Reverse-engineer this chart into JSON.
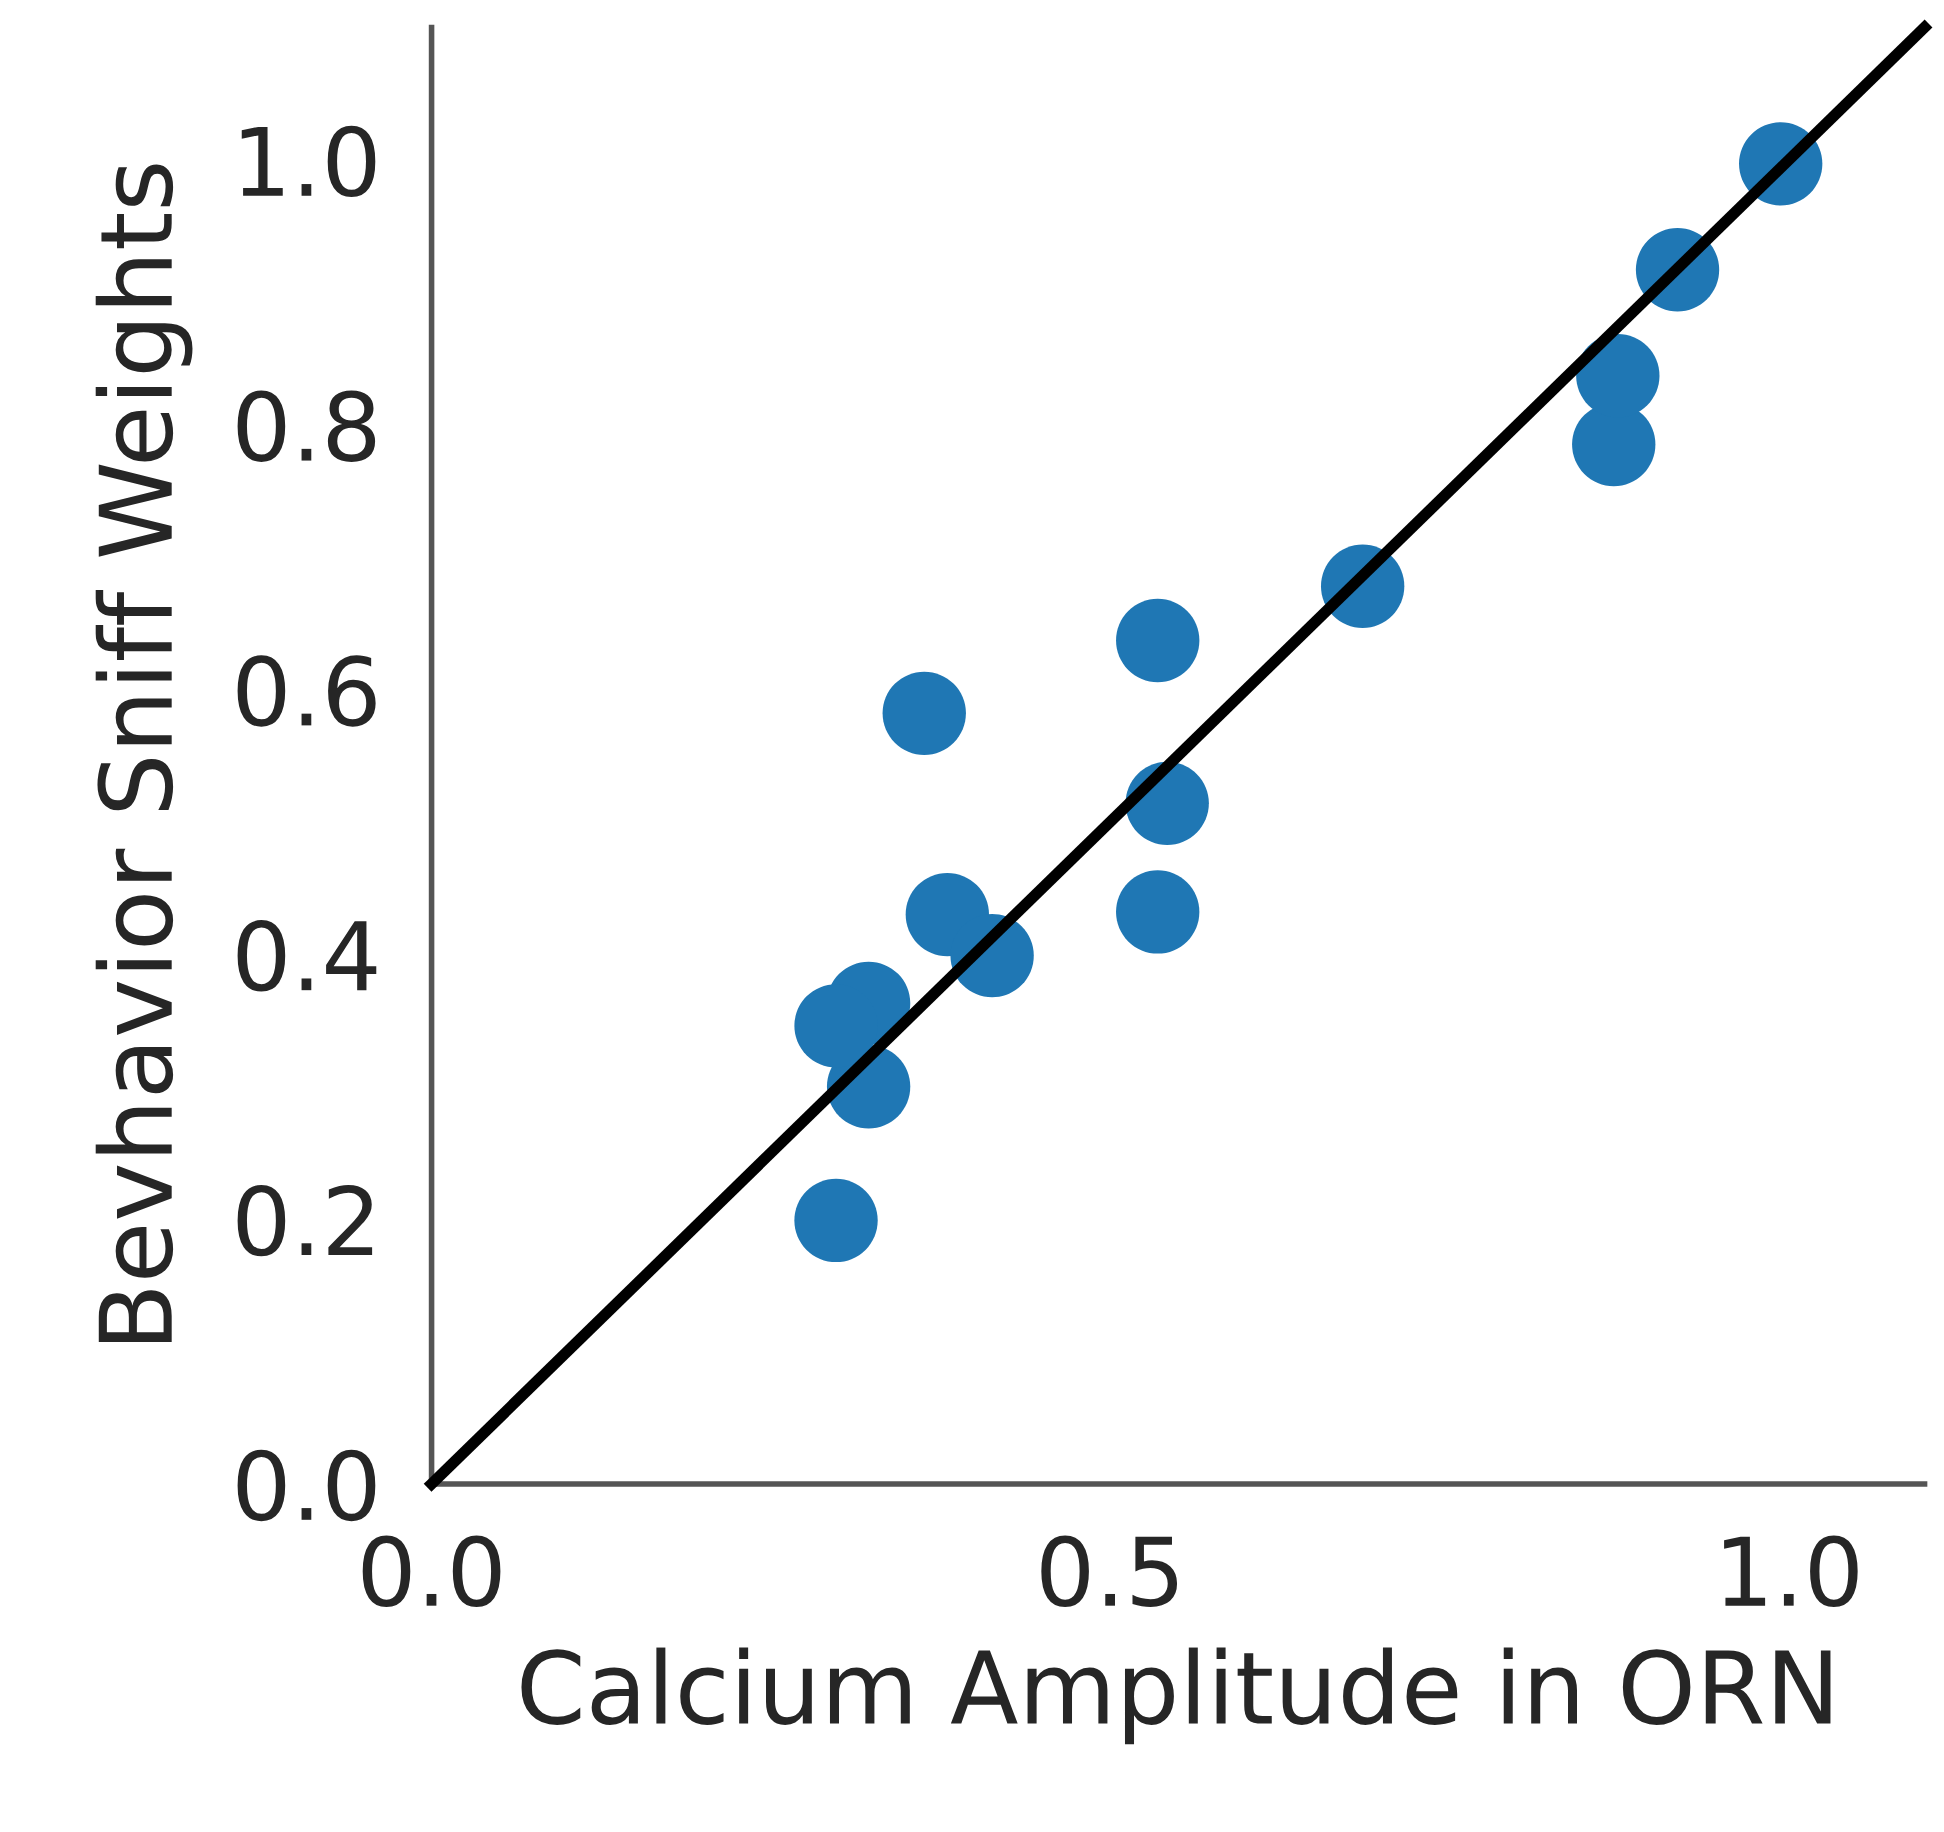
{
  "chart_data": {
    "type": "scatter",
    "xlabel": "Calcium Amplitude in ORN",
    "ylabel": "Bevhavior Sniff Weights",
    "xlim": [
      0,
      1.1
    ],
    "ylim": [
      0,
      1.1
    ],
    "xticks": [
      {
        "value": 0,
        "label": "0.0"
      },
      0.5,
      {
        "value": 1,
        "label": "1.0"
      }
    ],
    "yticks": [
      {
        "value": 0,
        "label": "0.0"
      },
      0.2,
      0.4,
      0.6,
      0.8,
      {
        "value": 1,
        "label": "1.0"
      }
    ],
    "grid": false,
    "marker": "circle",
    "series": [
      {
        "color": "#1f77b4",
        "x": [
          0.298,
          0.322,
          0.322,
          0.298,
          0.363,
          0.38,
          0.413,
          0.535,
          0.542,
          0.535,
          0.686,
          0.871,
          0.874,
          0.918,
          0.994
        ],
        "values": [
          0.199,
          0.363,
          0.3,
          0.346,
          0.582,
          0.43,
          0.399,
          0.637,
          0.514,
          0.432,
          0.678,
          0.785,
          0.837,
          0.917,
          0.997
        ]
      },
      {
        "type": "line",
        "color": "#000000",
        "marker": "none",
        "x": [
          0,
          1.1
        ],
        "values": [
          0,
          1.1
        ]
      }
    ]
  }
}
